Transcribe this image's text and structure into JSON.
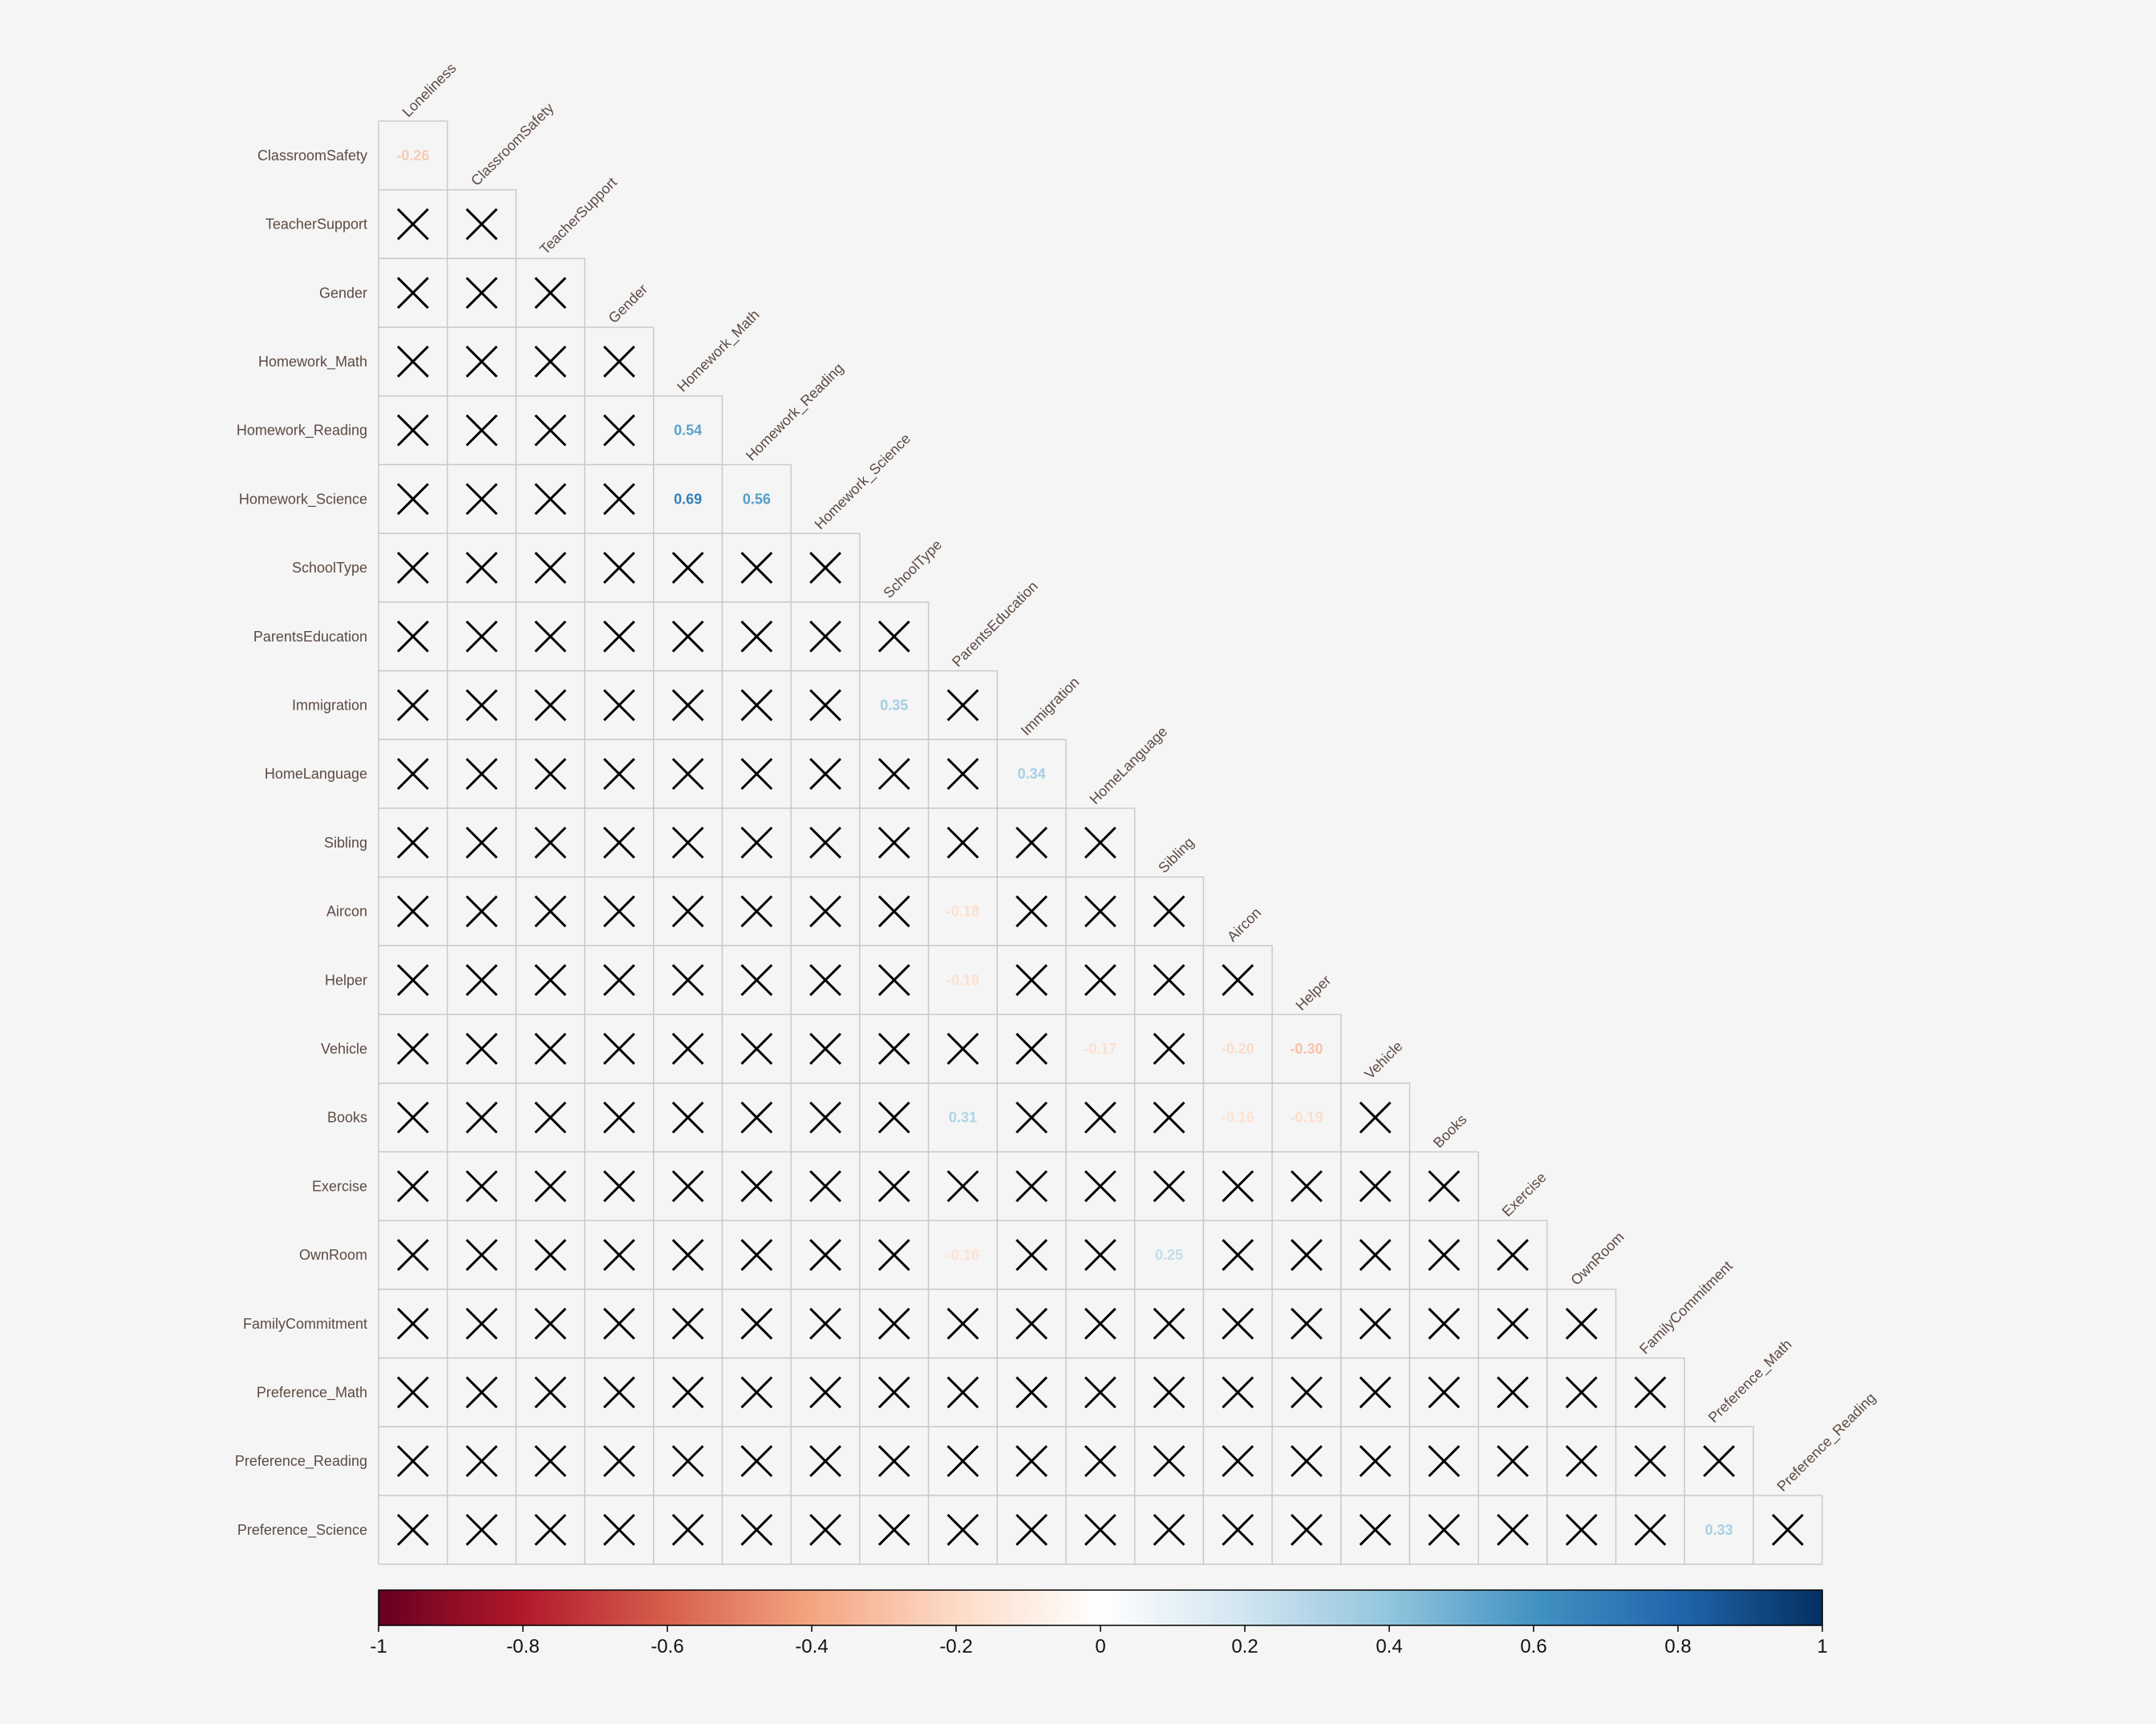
{
  "chart_data": {
    "type": "heatmap",
    "variables": [
      "Loneliness",
      "ClassroomSafety",
      "TeacherSupport",
      "Gender",
      "Homework_Math",
      "Homework_Reading",
      "Homework_Science",
      "SchoolType",
      "ParentsEducation",
      "Immigration",
      "HomeLanguage",
      "Sibling",
      "Aircon",
      "Helper",
      "Vehicle",
      "Books",
      "Exercise",
      "OwnRoom",
      "FamilyCommitment",
      "Preference_Math",
      "Preference_Reading",
      "Preference_Science"
    ],
    "row_labels": [
      "ClassroomSafety",
      "TeacherSupport",
      "Gender",
      "Homework_Math",
      "Homework_Reading",
      "Homework_Science",
      "SchoolType",
      "ParentsEducation",
      "Immigration",
      "HomeLanguage",
      "Sibling",
      "Aircon",
      "Helper",
      "Vehicle",
      "Books",
      "Exercise",
      "OwnRoom",
      "FamilyCommitment",
      "Preference_Math",
      "Preference_Reading",
      "Preference_Science"
    ],
    "column_labels": [
      "Loneliness",
      "ClassroomSafety",
      "TeacherSupport",
      "Gender",
      "Homework_Math",
      "Homework_Reading",
      "Homework_Science",
      "SchoolType",
      "ParentsEducation",
      "Immigration",
      "HomeLanguage",
      "Sibling",
      "Aircon",
      "Helper",
      "Vehicle",
      "Books",
      "Exercise",
      "OwnRoom",
      "FamilyCommitment",
      "Preference_Math",
      "Preference_Reading"
    ],
    "layout": "lower-triangle",
    "significant_correlations": [
      {
        "row": "ClassroomSafety",
        "col": "Loneliness",
        "value": -0.26,
        "label": "-0.26"
      },
      {
        "row": "Homework_Reading",
        "col": "Homework_Math",
        "value": 0.54,
        "label": "0.54"
      },
      {
        "row": "Homework_Science",
        "col": "Homework_Math",
        "value": 0.69,
        "label": "0.69"
      },
      {
        "row": "Homework_Science",
        "col": "Homework_Reading",
        "value": 0.56,
        "label": "0.56"
      },
      {
        "row": "Immigration",
        "col": "SchoolType",
        "value": 0.35,
        "label": "0.35"
      },
      {
        "row": "HomeLanguage",
        "col": "Immigration",
        "value": 0.34,
        "label": "0.34"
      },
      {
        "row": "Aircon",
        "col": "ParentsEducation",
        "value": -0.18,
        "label": "-0.18"
      },
      {
        "row": "Helper",
        "col": "ParentsEducation",
        "value": -0.18,
        "label": "-0.18"
      },
      {
        "row": "Vehicle",
        "col": "HomeLanguage",
        "value": -0.17,
        "label": "-0.17"
      },
      {
        "row": "Vehicle",
        "col": "Aircon",
        "value": -0.2,
        "label": "-0.20"
      },
      {
        "row": "Vehicle",
        "col": "Helper",
        "value": -0.3,
        "label": "-0.30"
      },
      {
        "row": "Books",
        "col": "ParentsEducation",
        "value": 0.31,
        "label": "0.31"
      },
      {
        "row": "Books",
        "col": "Aircon",
        "value": -0.16,
        "label": "-0.16"
      },
      {
        "row": "Books",
        "col": "Helper",
        "value": -0.19,
        "label": "-0.19"
      },
      {
        "row": "OwnRoom",
        "col": "ParentsEducation",
        "value": -0.16,
        "label": "-0.16"
      },
      {
        "row": "OwnRoom",
        "col": "Sibling",
        "value": 0.25,
        "label": "0.25"
      },
      {
        "row": "Preference_Science",
        "col": "Preference_Math",
        "value": 0.33,
        "label": "0.33"
      }
    ],
    "insignificant_note": "all other lower-triangle cells are crossed out (not significant)",
    "colorbar": {
      "range": [
        -1,
        1
      ],
      "ticks": [
        "-1",
        "-0.8",
        "-0.6",
        "-0.4",
        "-0.2",
        "0",
        "0.2",
        "0.4",
        "0.6",
        "0.8",
        "1"
      ],
      "colors": [
        "#67001f",
        "#b2182b",
        "#d6604d",
        "#f4a582",
        "#fddbc7",
        "#ffffff",
        "#d1e5f0",
        "#92c5de",
        "#4393c3",
        "#2166ac",
        "#053061"
      ]
    },
    "title": "",
    "grid": true,
    "legend_placement": "bottom"
  }
}
